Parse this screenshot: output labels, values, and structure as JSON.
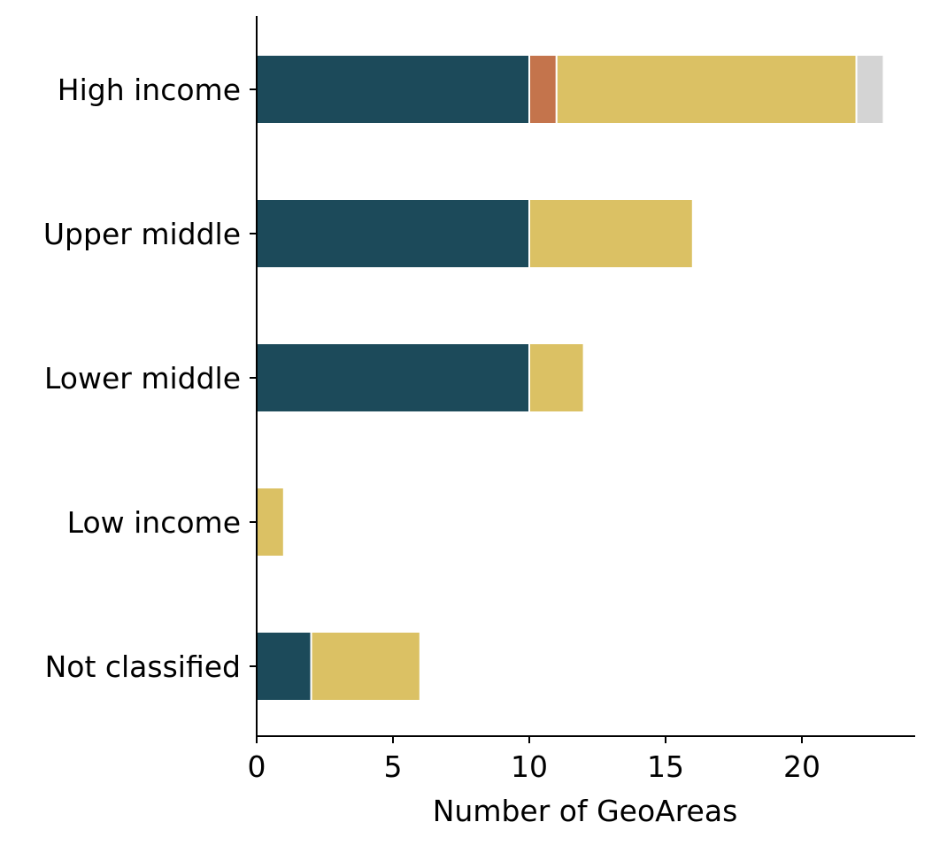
{
  "chart_data": {
    "type": "bar",
    "orientation": "horizontal",
    "stacked": true,
    "categories": [
      "High income",
      "Upper middle",
      "Lower middle",
      "Low income",
      "Not classified"
    ],
    "series": [
      {
        "color": "#1c4a5a",
        "values": [
          10,
          10,
          10,
          0,
          2
        ]
      },
      {
        "color": "#c4744c",
        "values": [
          1,
          0,
          0,
          0,
          0
        ]
      },
      {
        "color": "#dbc164",
        "values": [
          11,
          6,
          2,
          1,
          4
        ]
      },
      {
        "color": "#d4d4d4",
        "values": [
          1,
          0,
          0,
          0,
          0
        ]
      }
    ],
    "xlabel": "Number of GeoAreas",
    "ylabel": "",
    "title": "",
    "xlim": [
      0,
      24.15
    ],
    "xticks": [
      "0",
      "5",
      "10",
      "15",
      "20"
    ],
    "grid": false,
    "legend": "none"
  }
}
